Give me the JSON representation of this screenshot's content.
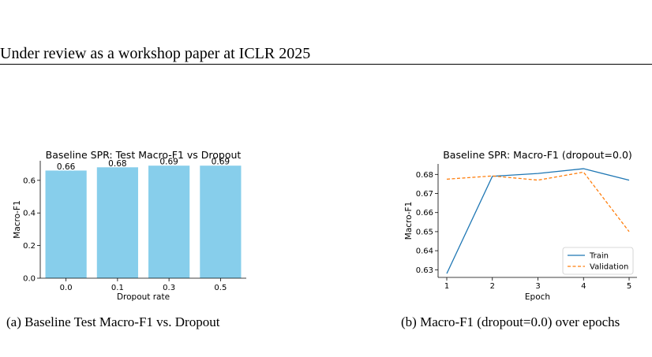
{
  "header": {
    "text": "Under review as a workshop paper at ICLR 2025"
  },
  "captions": {
    "a": "(a)  Baseline Test Macro-F1 vs. Dropout",
    "b": "(b)  Macro-F1 (dropout=0.0) over epochs"
  },
  "colors": {
    "bar": "#87ceeb",
    "train": "#1f77b4",
    "validation": "#ff7f0e"
  },
  "chart_data": [
    {
      "type": "bar",
      "title": "Baseline SPR: Test Macro-F1 vs Dropout",
      "xlabel": "Dropout rate",
      "ylabel": "Macro-F1",
      "categories": [
        "0.0",
        "0.1",
        "0.3",
        "0.5"
      ],
      "values": [
        0.66,
        0.68,
        0.69,
        0.69
      ],
      "value_labels": [
        "0.66",
        "0.68",
        "0.69",
        "0.69"
      ],
      "ylim": [
        0,
        0.72
      ],
      "yticks": [
        0.0,
        0.2,
        0.4,
        0.6
      ],
      "ytick_labels": [
        "0.0",
        "0.2",
        "0.4",
        "0.6"
      ],
      "grid": false
    },
    {
      "type": "line",
      "title": "Baseline SPR: Macro-F1 (dropout=0.0)",
      "xlabel": "Epoch",
      "ylabel": "Macro-F1",
      "x": [
        1,
        2,
        3,
        4,
        5
      ],
      "xtick_labels": [
        "1",
        "2",
        "3",
        "4",
        "5"
      ],
      "series": [
        {
          "name": "Train",
          "values": [
            0.628,
            0.679,
            0.6805,
            0.683,
            0.677
          ]
        },
        {
          "name": "Validation",
          "values": [
            0.6775,
            0.6792,
            0.677,
            0.6812,
            0.65
          ]
        }
      ],
      "ylim": [
        0.626,
        0.6855
      ],
      "yticks": [
        0.63,
        0.64,
        0.65,
        0.66,
        0.67,
        0.68
      ],
      "ytick_labels": [
        "0.63",
        "0.64",
        "0.65",
        "0.66",
        "0.67",
        "0.68"
      ],
      "legend": "lower-right",
      "grid": false
    }
  ]
}
